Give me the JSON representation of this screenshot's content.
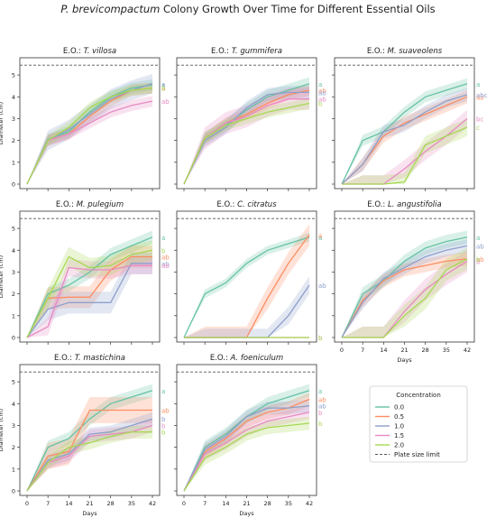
{
  "figure": {
    "title_italic": "P. brevicompactum",
    "title_rest": " Colony Growth Over Time for Different Essential Oils"
  },
  "legend": {
    "title": "Concentration",
    "plate_label": "Plate size limit"
  },
  "colors": {
    "0.0": "#66c2a5",
    "0.5": "#fc8d62",
    "1.0": "#8da0cb",
    "1.5": "#e78ac3",
    "2.0": "#a6d854",
    "plate": "#555555"
  },
  "chart_data": {
    "type": "line",
    "x": [
      0,
      7,
      14,
      21,
      28,
      35,
      42
    ],
    "xlabel": "Days",
    "ylabel": "Diameter (cm)",
    "ylim": [
      0,
      5.5
    ],
    "yticks": [
      0,
      1,
      2,
      3,
      4,
      5
    ],
    "plate_limit": 5.45,
    "concentrations": [
      "0.0",
      "0.5",
      "1.0",
      "1.5",
      "2.0"
    ],
    "panels": [
      {
        "prefix": "E.O.: ",
        "oil": "T. villosa",
        "series": [
          {
            "name": "0.0",
            "values": [
              0,
              2.05,
              2.4,
              3.3,
              4.0,
              4.4,
              4.55
            ],
            "spread": 0.25
          },
          {
            "name": "0.5",
            "values": [
              0,
              2.0,
              2.3,
              3.1,
              3.8,
              4.3,
              4.4
            ],
            "spread": 0.25
          },
          {
            "name": "1.0",
            "values": [
              0,
              2.0,
              2.5,
              3.2,
              3.9,
              4.3,
              4.6
            ],
            "spread": 0.45
          },
          {
            "name": "1.5",
            "values": [
              0,
              2.0,
              2.3,
              2.8,
              3.3,
              3.6,
              3.8
            ],
            "spread": 0.25
          },
          {
            "name": "2.0",
            "values": [
              0,
              2.0,
              2.6,
              3.5,
              4.0,
              4.3,
              4.4
            ],
            "spread": 0.25
          }
        ],
        "letters": [
          "a",
          "a",
          "a",
          "ab",
          "b"
        ]
      },
      {
        "prefix": "E.O.: ",
        "oil": "T. gummifera",
        "series": [
          {
            "name": "0.0",
            "values": [
              0,
              2.1,
              2.7,
              3.4,
              4.0,
              4.3,
              4.6
            ],
            "spread": 0.3
          },
          {
            "name": "0.5",
            "values": [
              0,
              2.1,
              2.8,
              3.2,
              3.7,
              4.1,
              4.3
            ],
            "spread": 0.25
          },
          {
            "name": "1.0",
            "values": [
              0,
              2.0,
              2.6,
              3.5,
              4.1,
              4.2,
              4.2
            ],
            "spread": 0.3
          },
          {
            "name": "1.5",
            "values": [
              0,
              2.1,
              2.8,
              3.1,
              3.6,
              3.9,
              3.9
            ],
            "spread": 0.5
          },
          {
            "name": "2.0",
            "values": [
              0,
              2.1,
              2.7,
              3.0,
              3.3,
              3.5,
              3.7
            ],
            "spread": 0.25
          }
        ],
        "letters": [
          "a",
          "ab",
          "ab",
          "ab",
          "b"
        ]
      },
      {
        "prefix": "E.O.: ",
        "oil": "M. suaveolens",
        "series": [
          {
            "name": "0.0",
            "values": [
              0,
              2.0,
              2.4,
              3.3,
              4.0,
              4.3,
              4.6
            ],
            "spread": 0.25
          },
          {
            "name": "0.5",
            "values": [
              0,
              0.9,
              2.2,
              2.8,
              3.2,
              3.6,
              4.0
            ],
            "spread": 0.3
          },
          {
            "name": "1.0",
            "values": [
              0,
              0.9,
              2.4,
              2.7,
              3.3,
              3.8,
              4.1
            ],
            "spread": 0.3
          },
          {
            "name": "1.5",
            "values": [
              0,
              0,
              0,
              0.7,
              1.5,
              2.2,
              3.0
            ],
            "spread": 0.4
          },
          {
            "name": "2.0",
            "values": [
              0,
              0,
              0,
              0.1,
              1.8,
              2.2,
              2.6
            ],
            "spread": 0.4
          }
        ],
        "letters": [
          "a",
          "ab",
          "abc",
          "bc",
          "c"
        ]
      },
      {
        "prefix": "E.O.: ",
        "oil": "M. pulegium",
        "series": [
          {
            "name": "0.0",
            "values": [
              0,
              2.0,
              2.4,
              3.0,
              3.8,
              4.2,
              4.6
            ],
            "spread": 0.3
          },
          {
            "name": "0.5",
            "values": [
              0,
              1.8,
              1.85,
              1.85,
              3.1,
              3.7,
              3.7
            ],
            "spread": 0.5
          },
          {
            "name": "1.0",
            "values": [
              0,
              1.3,
              1.6,
              1.6,
              1.6,
              3.4,
              3.4
            ],
            "spread": 0.5
          },
          {
            "name": "1.5",
            "values": [
              0,
              0.5,
              3.2,
              3.1,
              3.1,
              3.3,
              3.3
            ],
            "spread": 0.4
          },
          {
            "name": "2.0",
            "values": [
              0,
              1.8,
              3.7,
              3.2,
              3.3,
              3.8,
              4.0
            ],
            "spread": 0.45
          }
        ],
        "letters": [
          "a",
          "ab",
          "ab",
          "ab",
          "b"
        ]
      },
      {
        "prefix": "E.O.: ",
        "oil": "C. citratus",
        "series": [
          {
            "name": "0.0",
            "values": [
              0,
              2.0,
              2.5,
              3.4,
              4.0,
              4.3,
              4.6
            ],
            "spread": 0.2
          },
          {
            "name": "0.5",
            "values": [
              0,
              0,
              0,
              0,
              1.8,
              3.4,
              4.7
            ],
            "spread": 0.5
          },
          {
            "name": "1.0",
            "values": [
              0,
              0,
              0,
              0,
              0,
              1.0,
              2.4
            ],
            "spread": 0.4
          },
          {
            "name": "1.5",
            "values": [
              0,
              0,
              0,
              0,
              0,
              0,
              0
            ],
            "spread": 0
          },
          {
            "name": "2.0",
            "values": [
              0,
              0,
              0,
              0,
              0,
              0,
              0
            ],
            "spread": 0
          }
        ],
        "letters": [
          "a",
          "a",
          "ab",
          "b",
          "b"
        ]
      },
      {
        "prefix": "E.O.: ",
        "oil": "L. angustifolia",
        "series": [
          {
            "name": "0.0",
            "values": [
              0,
              2.0,
              2.6,
              3.5,
              4.1,
              4.4,
              4.6
            ],
            "spread": 0.3
          },
          {
            "name": "0.5",
            "values": [
              0,
              1.7,
              2.6,
              3.1,
              3.3,
              3.5,
              3.6
            ],
            "spread": 0.3
          },
          {
            "name": "1.0",
            "values": [
              0,
              1.6,
              2.7,
              3.2,
              3.7,
              4.0,
              4.2
            ],
            "spread": 0.3
          },
          {
            "name": "1.5",
            "values": [
              0,
              0,
              0,
              1.2,
              2.2,
              2.9,
              3.5
            ],
            "spread": 0.5
          },
          {
            "name": "2.0",
            "values": [
              0,
              0,
              0,
              1.0,
              1.8,
              3.1,
              3.6
            ],
            "spread": 0.5
          }
        ],
        "letters": [
          "a",
          "ab",
          "ab",
          "b",
          "b"
        ]
      },
      {
        "prefix": "E.O.: ",
        "oil": "T. mastichina",
        "series": [
          {
            "name": "0.0",
            "values": [
              0,
              2.0,
              2.4,
              3.3,
              4.0,
              4.3,
              4.6
            ],
            "spread": 0.3
          },
          {
            "name": "0.5",
            "values": [
              0,
              1.6,
              1.8,
              3.7,
              3.7,
              3.7,
              3.7
            ],
            "spread": 0.6
          },
          {
            "name": "1.0",
            "values": [
              0,
              1.4,
              1.7,
              2.6,
              2.7,
              3.0,
              3.3
            ],
            "spread": 0.3
          },
          {
            "name": "1.5",
            "values": [
              0,
              1.3,
              1.6,
              2.5,
              2.6,
              2.7,
              3.0
            ],
            "spread": 0.3
          },
          {
            "name": "2.0",
            "values": [
              0,
              1.3,
              2.0,
              2.2,
              2.5,
              2.7,
              2.7
            ],
            "spread": 0.3
          }
        ],
        "letters": [
          "a",
          "ab",
          "b",
          "b",
          "b"
        ]
      },
      {
        "prefix": "E.O.: ",
        "oil": "A. foeniculum",
        "series": [
          {
            "name": "0.0",
            "values": [
              0,
              2.0,
              2.6,
              3.4,
              4.0,
              4.3,
              4.6
            ],
            "spread": 0.3
          },
          {
            "name": "0.5",
            "values": [
              0,
              1.8,
              2.4,
              3.2,
              3.6,
              3.8,
              4.2
            ],
            "spread": 0.3
          },
          {
            "name": "1.0",
            "values": [
              0,
              1.9,
              2.5,
              3.4,
              3.8,
              3.8,
              3.9
            ],
            "spread": 0.3
          },
          {
            "name": "1.5",
            "values": [
              0,
              1.7,
              2.2,
              2.8,
              3.2,
              3.4,
              3.6
            ],
            "spread": 0.3
          },
          {
            "name": "2.0",
            "values": [
              0,
              1.5,
              2.0,
              2.6,
              2.9,
              3.0,
              3.1
            ],
            "spread": 0.3
          }
        ],
        "letters": [
          "a",
          "ab",
          "ab",
          "b",
          "b"
        ]
      }
    ]
  }
}
